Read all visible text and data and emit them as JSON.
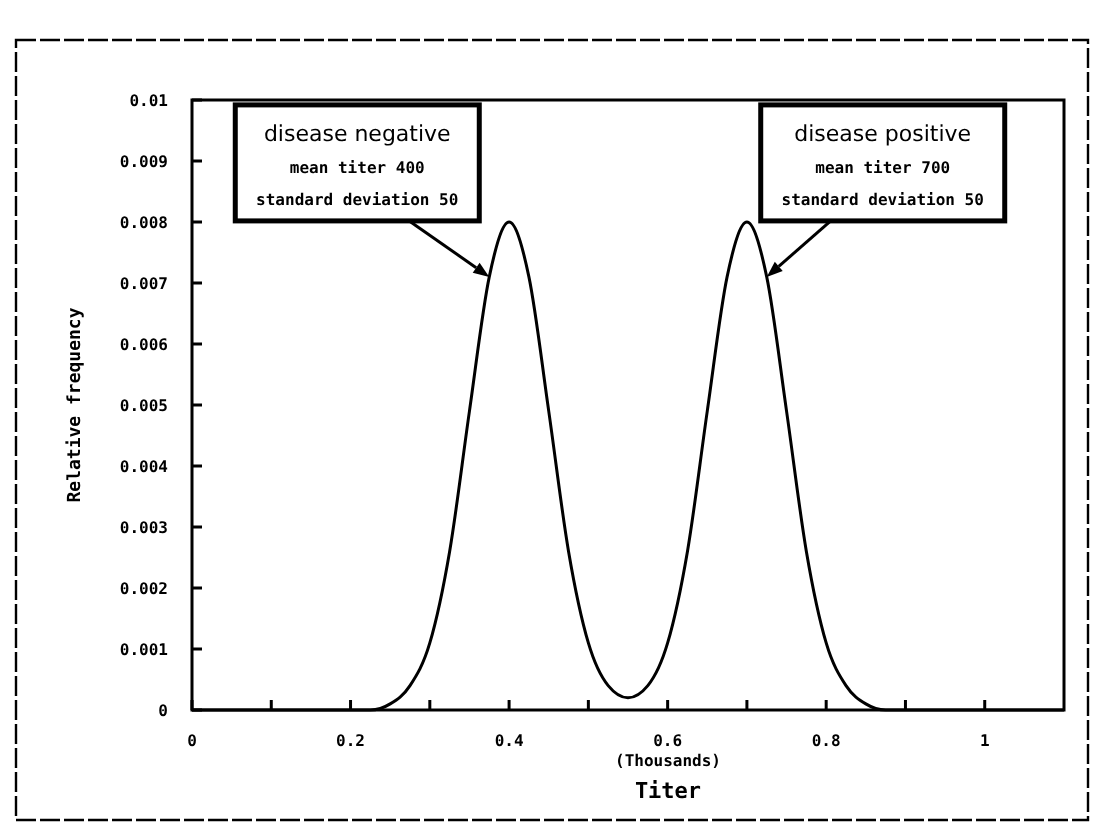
{
  "chart_data": {
    "type": "line",
    "xlabel": "Titer",
    "ylabel": "Relative frequency",
    "x": [
      0,
      0.1,
      0.2,
      0.225,
      0.25,
      0.275,
      0.3,
      0.325,
      0.35,
      0.375,
      0.4,
      0.425,
      0.45,
      0.475,
      0.5,
      0.525,
      0.55,
      0.575,
      0.6,
      0.625,
      0.65,
      0.675,
      0.7,
      0.725,
      0.75,
      0.775,
      0.8,
      0.825,
      0.85,
      0.875,
      0.9,
      1.0,
      1.1
    ],
    "series": [
      {
        "color": "#000000",
        "values": [
          0,
          0,
          0,
          0,
          0.0001,
          0.0004,
          0.0011,
          0.0026,
          0.0049,
          0.0071,
          0.008,
          0.0071,
          0.0049,
          0.0026,
          0.0011,
          0.0004,
          0.0002,
          0.0004,
          0.0011,
          0.0026,
          0.0049,
          0.0071,
          0.008,
          0.0071,
          0.0049,
          0.0026,
          0.0011,
          0.0004,
          0.0001,
          0,
          0,
          0,
          0
        ]
      }
    ],
    "xlim": [
      0,
      1.1
    ],
    "ylim": [
      0,
      0.01
    ],
    "xticks": [
      0,
      {
        "value": 0.1,
        "label": null
      },
      0.2,
      {
        "value": 0.3,
        "label": null
      },
      0.4,
      {
        "value": 0.5,
        "label": null
      },
      0.6,
      {
        "value": 0.7,
        "label": null
      },
      0.8,
      {
        "value": 0.9,
        "label": null
      },
      1
    ],
    "yticks": [
      0,
      0.001,
      0.002,
      0.003,
      0.004,
      0.005,
      0.006,
      0.007,
      0.008,
      0.009,
      0.01
    ],
    "grid": false,
    "marker": "none",
    "line_style": "solid",
    "annotations": [
      {
        "text": "disease negative\nmean titer 400\nstandard deviation 50",
        "x": 0.375,
        "y": 0.0071
      },
      {
        "text": "disease positive\nmean titer 700\nstandard deviation 50",
        "x": 0.725,
        "y": 0.0071
      },
      "(Thousands)"
    ]
  }
}
